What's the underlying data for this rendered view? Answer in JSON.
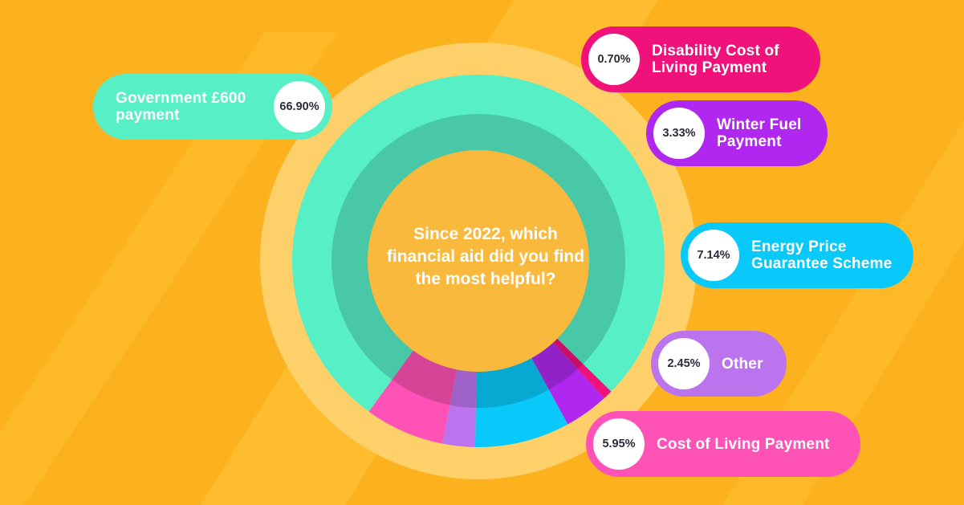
{
  "background": {
    "base": "#fcb21f",
    "stripe": "#ffc53a",
    "ring": "#fdd06a",
    "center": "#f8b93c"
  },
  "question": "Since 2022, which financial aid did you find the most helpful?",
  "chart_data": {
    "type": "pie",
    "title": "Since 2022, which financial aid did you find the most helpful?",
    "unit": "%",
    "slices": [
      {
        "name": "Government £600 payment",
        "value": 66.9,
        "value_label": "66.90%",
        "color": "#56efc6"
      },
      {
        "name": "Disability Cost of Living Payment",
        "value": 0.7,
        "value_label": "0.70%",
        "color": "#f0117b"
      },
      {
        "name": "Winter Fuel Payment",
        "value": 3.33,
        "value_label": "3.33%",
        "color": "#b028ef"
      },
      {
        "name": "Energy Price Guarantee Scheme",
        "value": 7.14,
        "value_label": "7.14%",
        "color": "#09c9fb"
      },
      {
        "name": "Other",
        "value": 2.45,
        "value_label": "2.45%",
        "color": "#bc74ee"
      },
      {
        "name": "Cost of Living Payment",
        "value": 5.95,
        "value_label": "5.95%",
        "color": "#ff52b6"
      }
    ]
  }
}
